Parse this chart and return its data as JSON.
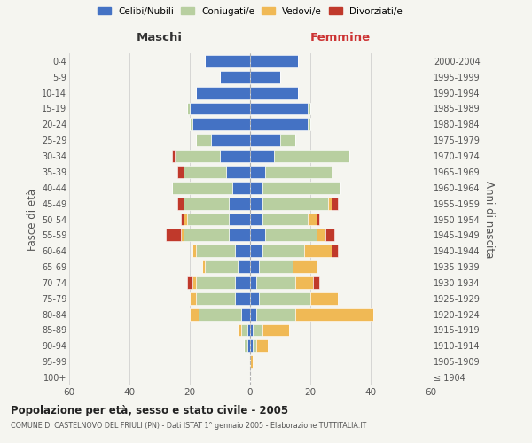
{
  "age_groups": [
    "100+",
    "95-99",
    "90-94",
    "85-89",
    "80-84",
    "75-79",
    "70-74",
    "65-69",
    "60-64",
    "55-59",
    "50-54",
    "45-49",
    "40-44",
    "35-39",
    "30-34",
    "25-29",
    "20-24",
    "15-19",
    "10-14",
    "5-9",
    "0-4"
  ],
  "birth_years": [
    "≤ 1904",
    "1905-1909",
    "1910-1914",
    "1915-1919",
    "1920-1924",
    "1925-1929",
    "1930-1934",
    "1935-1939",
    "1940-1944",
    "1945-1949",
    "1950-1954",
    "1955-1959",
    "1960-1964",
    "1965-1969",
    "1970-1974",
    "1975-1979",
    "1980-1984",
    "1985-1989",
    "1990-1994",
    "1995-1999",
    "2000-2004"
  ],
  "maschi": {
    "celibi": [
      0,
      0,
      1,
      1,
      3,
      5,
      5,
      4,
      5,
      7,
      7,
      7,
      6,
      8,
      10,
      13,
      19,
      20,
      18,
      10,
      15
    ],
    "coniugati": [
      0,
      0,
      1,
      2,
      14,
      13,
      13,
      11,
      13,
      15,
      14,
      15,
      20,
      14,
      15,
      5,
      1,
      1,
      0,
      0,
      0
    ],
    "vedovi": [
      0,
      0,
      0,
      1,
      3,
      2,
      1,
      1,
      1,
      1,
      1,
      0,
      0,
      0,
      0,
      0,
      0,
      0,
      0,
      0,
      0
    ],
    "divorziati": [
      0,
      0,
      0,
      0,
      0,
      0,
      2,
      0,
      0,
      5,
      1,
      2,
      0,
      2,
      1,
      0,
      0,
      0,
      0,
      0,
      0
    ]
  },
  "femmine": {
    "nubili": [
      0,
      0,
      1,
      1,
      2,
      3,
      2,
      3,
      4,
      5,
      4,
      4,
      4,
      5,
      8,
      10,
      19,
      19,
      16,
      10,
      16
    ],
    "coniugate": [
      0,
      0,
      1,
      3,
      13,
      17,
      13,
      11,
      14,
      17,
      15,
      22,
      26,
      22,
      25,
      5,
      1,
      1,
      0,
      0,
      0
    ],
    "vedove": [
      0,
      1,
      4,
      9,
      26,
      9,
      6,
      8,
      9,
      3,
      3,
      1,
      0,
      0,
      0,
      0,
      0,
      0,
      0,
      0,
      0
    ],
    "divorziate": [
      0,
      0,
      0,
      0,
      0,
      0,
      2,
      0,
      2,
      3,
      1,
      2,
      0,
      0,
      0,
      0,
      0,
      0,
      0,
      0,
      0
    ]
  },
  "colors": {
    "celibi_nubili": "#4472c4",
    "coniugati": "#b8cfa0",
    "vedovi": "#f0b955",
    "divorziati": "#c0392b"
  },
  "xlim": 60,
  "title": "Popolazione per età, sesso e stato civile - 2005",
  "subtitle": "COMUNE DI CASTELNOVO DEL FRIULI (PN) - Dati ISTAT 1° gennaio 2005 - Elaborazione TUTTITALIA.IT",
  "ylabel_left": "Fasce di età",
  "ylabel_right": "Anni di nascita",
  "xlabel_maschi": "Maschi",
  "xlabel_femmine": "Femmine",
  "bg_color": "#f5f5f0",
  "grid_color": "#cccccc"
}
